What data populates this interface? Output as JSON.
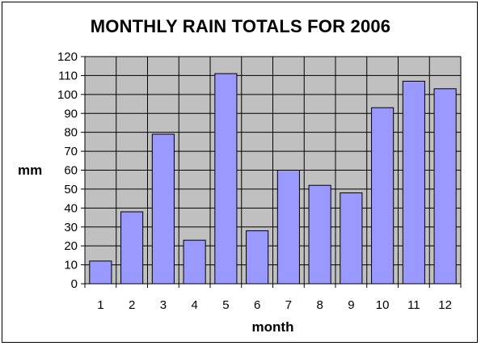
{
  "chart_data": {
    "type": "bar",
    "title": "MONTHLY RAIN TOTALS FOR 2006",
    "xlabel": "month",
    "ylabel": "mm",
    "categories": [
      "1",
      "2",
      "3",
      "4",
      "5",
      "6",
      "7",
      "8",
      "9",
      "10",
      "11",
      "12"
    ],
    "values": [
      12,
      38,
      79,
      23,
      111,
      28,
      60,
      52,
      48,
      93,
      107,
      103
    ],
    "ylim": [
      0,
      120
    ],
    "yticks": [
      0,
      10,
      20,
      30,
      40,
      50,
      60,
      70,
      80,
      90,
      100,
      110,
      120
    ],
    "grid": true,
    "legend": "none",
    "colors": {
      "bar_fill": "#9999ff",
      "bar_stroke": "#000000",
      "plot_background": "#c0c0c0",
      "grid": "#000000"
    }
  }
}
